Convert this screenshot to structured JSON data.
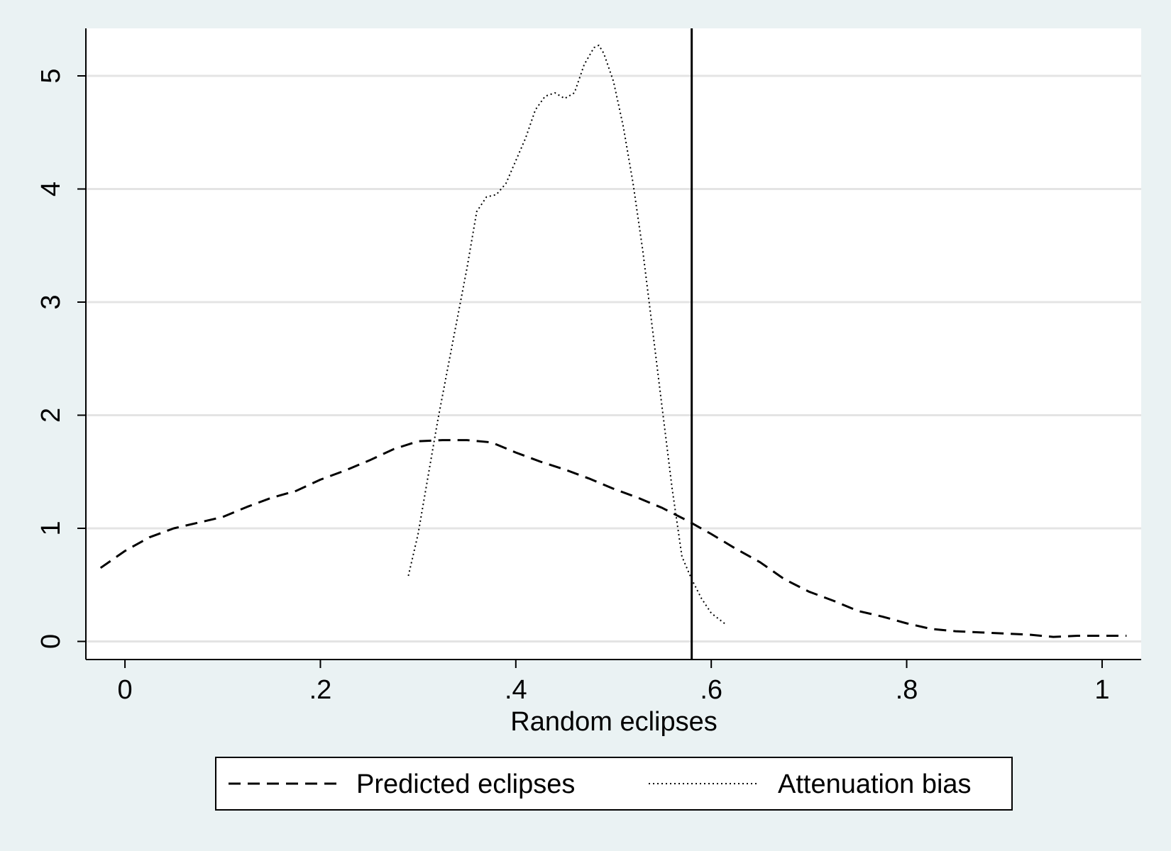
{
  "chart_data": {
    "type": "line",
    "title": "",
    "xlabel": "Random eclipses",
    "ylabel": "",
    "xlim": [
      -0.04,
      1.04
    ],
    "ylim": [
      -0.16,
      5.42
    ],
    "grid": "horizontal",
    "legend_position": "bottom",
    "x_ticks": [
      {
        "value": 0,
        "label": "0"
      },
      {
        "value": 0.2,
        "label": ".2"
      },
      {
        "value": 0.4,
        "label": ".4"
      },
      {
        "value": 0.6,
        "label": ".6"
      },
      {
        "value": 0.8,
        "label": ".8"
      },
      {
        "value": 1,
        "label": "1"
      }
    ],
    "y_ticks": [
      {
        "value": 0,
        "label": "0"
      },
      {
        "value": 1,
        "label": "1"
      },
      {
        "value": 2,
        "label": "2"
      },
      {
        "value": 3,
        "label": "3"
      },
      {
        "value": 4,
        "label": "4"
      },
      {
        "value": 5,
        "label": "5"
      }
    ],
    "reference_line": {
      "x": 0.58
    },
    "series": [
      {
        "name": "Predicted eclipses",
        "style": "dashed",
        "x": [
          -0.025,
          0.0,
          0.025,
          0.05,
          0.075,
          0.1,
          0.125,
          0.15,
          0.175,
          0.2,
          0.225,
          0.25,
          0.275,
          0.3,
          0.325,
          0.35,
          0.375,
          0.4,
          0.425,
          0.45,
          0.475,
          0.5,
          0.525,
          0.55,
          0.575,
          0.6,
          0.625,
          0.65,
          0.675,
          0.7,
          0.725,
          0.75,
          0.775,
          0.8,
          0.825,
          0.85,
          0.875,
          0.9,
          0.925,
          0.95,
          0.975,
          1.0,
          1.025
        ],
        "y": [
          0.65,
          0.8,
          0.92,
          1.0,
          1.05,
          1.1,
          1.19,
          1.27,
          1.33,
          1.43,
          1.51,
          1.6,
          1.7,
          1.77,
          1.78,
          1.78,
          1.76,
          1.67,
          1.59,
          1.52,
          1.44,
          1.35,
          1.27,
          1.18,
          1.07,
          0.95,
          0.82,
          0.7,
          0.55,
          0.44,
          0.36,
          0.27,
          0.22,
          0.16,
          0.11,
          0.09,
          0.08,
          0.07,
          0.06,
          0.04,
          0.05,
          0.05,
          0.05
        ]
      },
      {
        "name": "Attenuation bias",
        "style": "dotted",
        "x": [
          0.29,
          0.3,
          0.31,
          0.32,
          0.33,
          0.34,
          0.35,
          0.36,
          0.37,
          0.38,
          0.39,
          0.4,
          0.41,
          0.42,
          0.43,
          0.44,
          0.45,
          0.46,
          0.47,
          0.48,
          0.485,
          0.49,
          0.5,
          0.51,
          0.52,
          0.53,
          0.54,
          0.55,
          0.56,
          0.57,
          0.58,
          0.59,
          0.6,
          0.615
        ],
        "y": [
          0.58,
          0.95,
          1.45,
          1.95,
          2.4,
          2.85,
          3.3,
          3.8,
          3.93,
          3.95,
          4.05,
          4.25,
          4.45,
          4.7,
          4.82,
          4.85,
          4.8,
          4.85,
          5.1,
          5.25,
          5.27,
          5.2,
          4.95,
          4.55,
          4.05,
          3.45,
          2.75,
          2.05,
          1.35,
          0.75,
          0.55,
          0.38,
          0.25,
          0.15
        ]
      }
    ]
  }
}
